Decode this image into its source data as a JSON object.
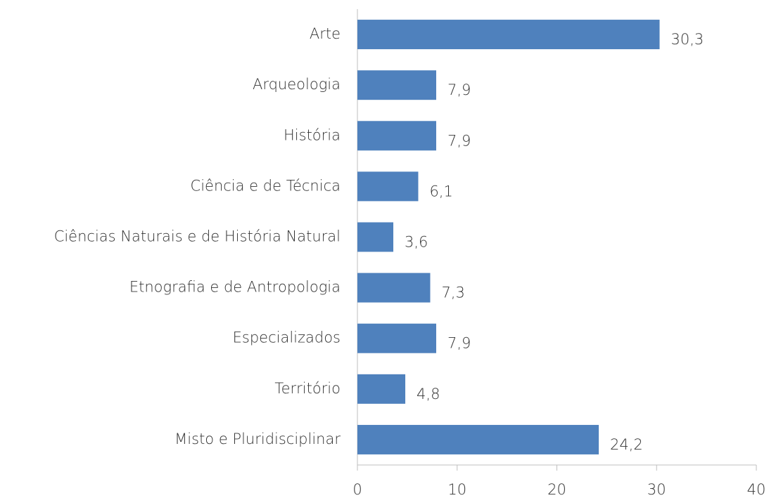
{
  "chart_data": {
    "type": "bar",
    "orientation": "horizontal",
    "categories": [
      "Arte",
      "Arqueologia",
      "História",
      "Ciência e de Técnica",
      "Ciências Naturais e de História Natural",
      "Etnografia e de Antropologia",
      "Especializados",
      "Território",
      "Misto e Pluridisciplinar"
    ],
    "values": [
      30.3,
      7.9,
      7.9,
      6.1,
      3.6,
      7.3,
      7.9,
      4.8,
      24.2
    ],
    "value_labels": [
      "30,3",
      "7,9",
      "7,9",
      "6,1",
      "3,6",
      "7,3",
      "7,9",
      "4,8",
      "24,2"
    ],
    "color": "#4f81bd",
    "xlim": [
      0,
      40
    ],
    "xticks": [
      0,
      10,
      20,
      30,
      40
    ],
    "grid": false
  }
}
